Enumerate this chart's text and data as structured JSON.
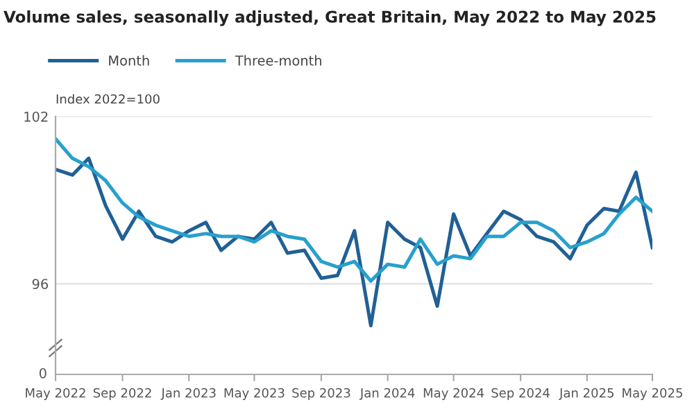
{
  "chart_data": [
    {
      "type": "line",
      "title": "Volume sales, seasonally adjusted, Great Britain, May 2022 to May 2025",
      "annotations": [
        "Index 2022=100"
      ],
      "x": [
        "2022-05",
        "2022-06",
        "2022-07",
        "2022-08",
        "2022-09",
        "2022-10",
        "2022-11",
        "2022-12",
        "2023-01",
        "2023-02",
        "2023-03",
        "2023-04",
        "2023-05",
        "2023-06",
        "2023-07",
        "2023-08",
        "2023-09",
        "2023-10",
        "2023-11",
        "2023-12",
        "2024-01",
        "2024-02",
        "2024-03",
        "2024-04",
        "2024-05",
        "2024-06",
        "2024-07",
        "2024-08",
        "2024-09",
        "2024-10",
        "2024-11",
        "2024-12",
        "2025-01",
        "2025-02",
        "2025-03",
        "2025-04",
        "2025-05"
      ],
      "series": [
        {
          "name": "Month",
          "color": "#206095",
          "values": [
            100.1,
            99.9,
            100.5,
            98.8,
            97.6,
            98.6,
            97.7,
            97.5,
            97.9,
            98.2,
            97.2,
            97.7,
            97.6,
            98.2,
            97.1,
            97.2,
            96.2,
            96.3,
            97.9,
            94.5,
            98.2,
            97.6,
            97.3,
            95.2,
            98.5,
            97.0,
            97.8,
            98.6,
            98.3,
            97.7,
            97.5,
            96.9,
            98.1,
            98.7,
            98.6,
            100.0,
            97.3
          ]
        },
        {
          "name": "Three-month",
          "color": "#27a0cc",
          "values": [
            101.2,
            100.5,
            100.2,
            99.7,
            98.9,
            98.4,
            98.1,
            97.9,
            97.7,
            97.8,
            97.7,
            97.7,
            97.5,
            97.9,
            97.7,
            97.6,
            96.8,
            96.6,
            96.8,
            96.1,
            96.7,
            96.6,
            97.6,
            96.7,
            97.0,
            96.9,
            97.7,
            97.7,
            98.2,
            98.2,
            97.9,
            97.3,
            97.5,
            97.8,
            98.5,
            99.1,
            98.6
          ]
        }
      ],
      "xlim": [
        "2022-05",
        "2025-05"
      ],
      "xticks": [
        {
          "value": "2022-05",
          "label": "May 2022"
        },
        {
          "value": "2022-09",
          "label": "Sep 2022"
        },
        {
          "value": "2023-01",
          "label": "Jan 2023"
        },
        {
          "value": "2023-05",
          "label": "May 2023"
        },
        {
          "value": "2023-09",
          "label": "Sep 2023"
        },
        {
          "value": "2024-01",
          "label": "Jan 2024"
        },
        {
          "value": "2024-05",
          "label": "May 2024"
        },
        {
          "value": "2024-09",
          "label": "Sep 2024"
        },
        {
          "value": "2025-01",
          "label": "Jan 2025"
        },
        {
          "value": "2025-05",
          "label": "May 2025"
        }
      ],
      "ylim": [
        92.75,
        102
      ],
      "yticks": [
        96,
        102
      ],
      "grid": "y",
      "legend": "top left",
      "marker": "none",
      "line_style": "solid"
    },
    {
      "type": "other",
      "annotations": [
        "0"
      ]
    }
  ]
}
